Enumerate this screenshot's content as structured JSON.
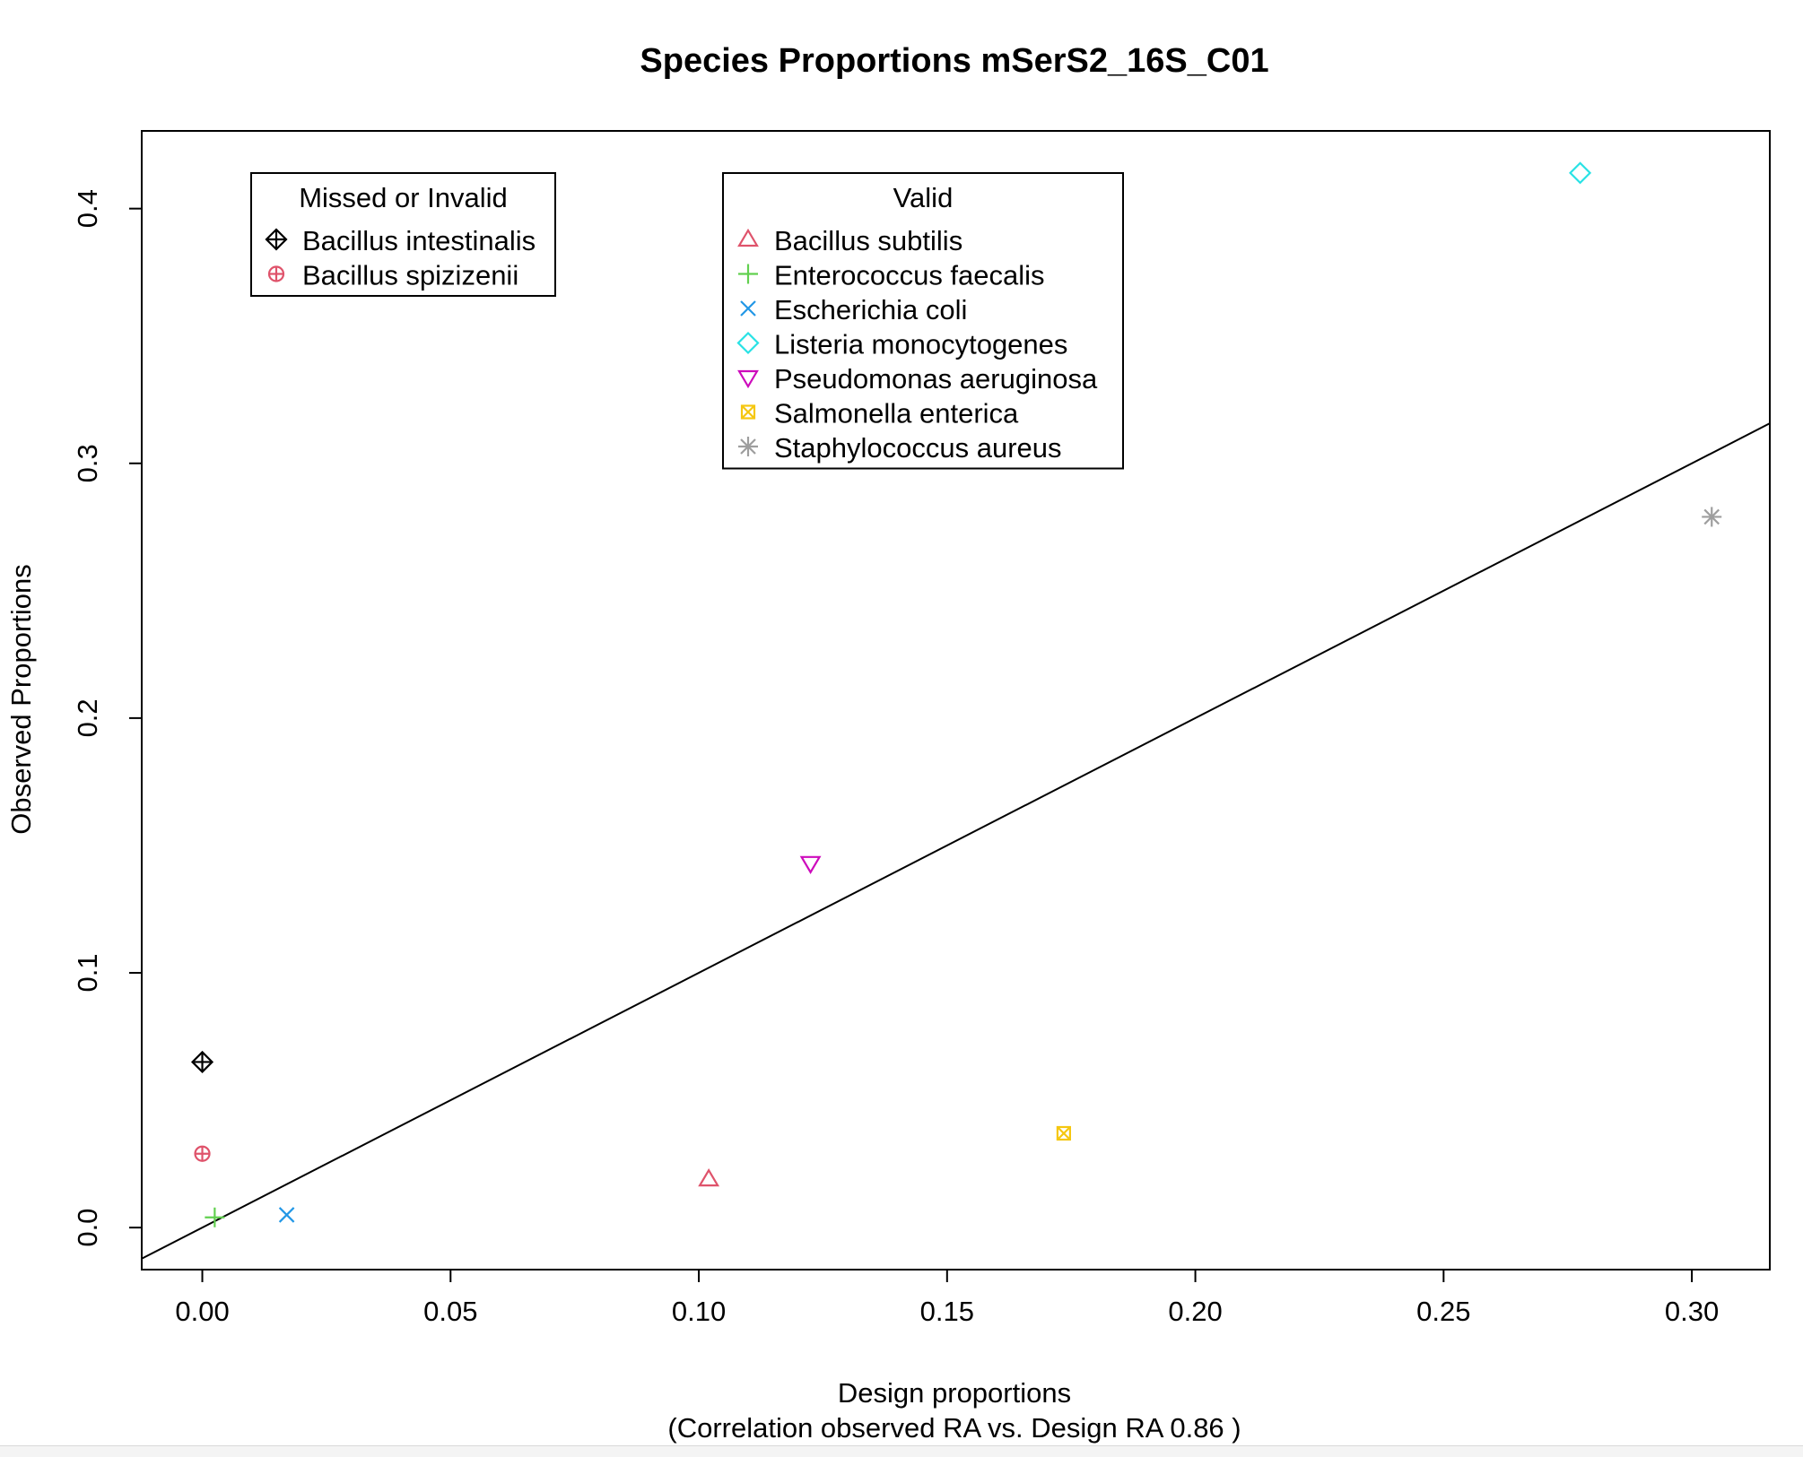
{
  "chart_data": {
    "type": "scatter",
    "title": "Species Proportions mSerS2_16S_C01",
    "xlabel": "Design proportions",
    "xlabel_sub": "(Correlation observed RA vs. Design RA  0.86 )",
    "ylabel": "Observed Proportions",
    "xlim": [
      -0.0122,
      0.3157
    ],
    "ylim": [
      -0.0165,
      0.4305
    ],
    "x_ticks": [
      0.0,
      0.05,
      0.1,
      0.15,
      0.2,
      0.25,
      0.3
    ],
    "x_tick_labels": [
      "0.00",
      "0.05",
      "0.10",
      "0.15",
      "0.20",
      "0.25",
      "0.30"
    ],
    "y_ticks": [
      0.0,
      0.1,
      0.2,
      0.3,
      0.4
    ],
    "y_tick_labels": [
      "0.0",
      "0.1",
      "0.2",
      "0.3",
      "0.4"
    ],
    "grid": false,
    "reference_line": {
      "type": "identity",
      "slope": 1,
      "intercept": 0
    },
    "legends": [
      {
        "title": "Missed or Invalid",
        "position": "top-left",
        "entries": [
          "Bacillus intestinalis",
          "Bacillus spizizenii"
        ]
      },
      {
        "title": "Valid",
        "position": "top-center",
        "entries": [
          "Bacillus subtilis",
          "Enterococcus faecalis",
          "Escherichia coli",
          "Listeria monocytogenes",
          "Pseudomonas aeruginosa",
          "Salmonella enterica",
          "Staphylococcus aureus"
        ]
      }
    ],
    "series": [
      {
        "name": "Bacillus intestinalis",
        "group": "Missed or Invalid",
        "marker": "diamond-plus",
        "color": "#000000",
        "x": 0.0,
        "y": 0.065
      },
      {
        "name": "Bacillus spizizenii",
        "group": "Missed or Invalid",
        "marker": "circle-plus",
        "color": "#DF536B",
        "x": 0.0,
        "y": 0.029
      },
      {
        "name": "Bacillus subtilis",
        "group": "Valid",
        "marker": "triangle-up",
        "color": "#DF536B",
        "x": 0.102,
        "y": 0.019
      },
      {
        "name": "Enterococcus faecalis",
        "group": "Valid",
        "marker": "plus",
        "color": "#61D04F",
        "x": 0.0025,
        "y": 0.004
      },
      {
        "name": "Escherichia coli",
        "group": "Valid",
        "marker": "cross",
        "color": "#2297E6",
        "x": 0.017,
        "y": 0.005
      },
      {
        "name": "Listeria monocytogenes",
        "group": "Valid",
        "marker": "diamond",
        "color": "#28E2E5",
        "x": 0.2775,
        "y": 0.414
      },
      {
        "name": "Pseudomonas aeruginosa",
        "group": "Valid",
        "marker": "triangle-down",
        "color": "#CD0BBC",
        "x": 0.1225,
        "y": 0.143
      },
      {
        "name": "Salmonella enterica",
        "group": "Valid",
        "marker": "square-cross",
        "color": "#F5C710",
        "x": 0.1735,
        "y": 0.037
      },
      {
        "name": "Staphylococcus aureus",
        "group": "Valid",
        "marker": "asterisk",
        "color": "#9E9E9E",
        "x": 0.304,
        "y": 0.279
      }
    ]
  }
}
